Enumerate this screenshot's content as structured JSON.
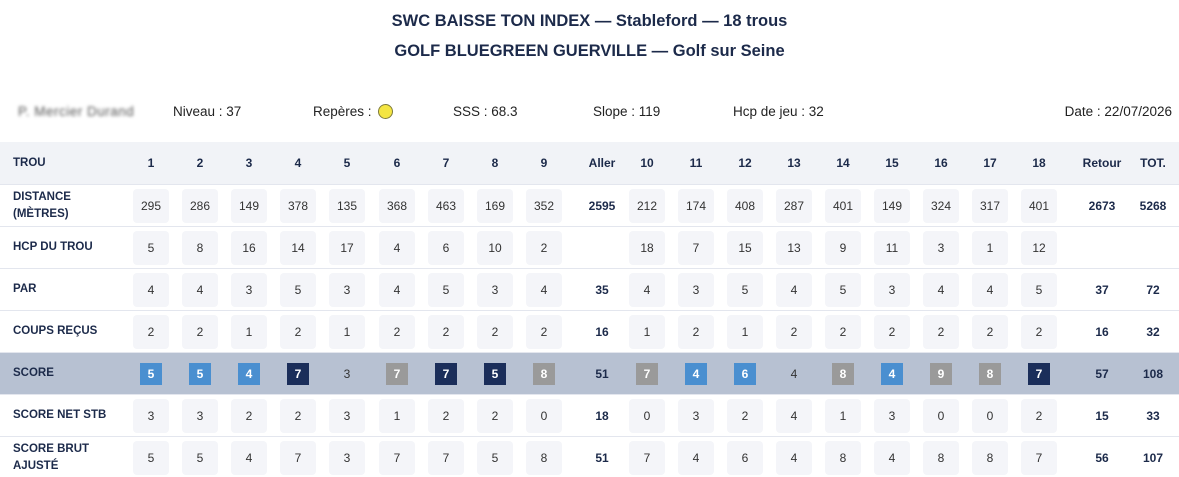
{
  "header": {
    "title_line1": "SWC BAISSE TON INDEX — Stableford — 18 trous",
    "title_line2": "GOLF BLUEGREEN GUERVILLE — Golf sur Seine"
  },
  "info": {
    "player_name": "P. Mercier Durand",
    "niveau": "Niveau : 37",
    "reperes_label": "Repères :",
    "tee_color": "#f4e542",
    "sss": "SSS : 68.3",
    "slope": "Slope : 119",
    "hcp": "Hcp de jeu : 32",
    "date": "Date : 22/07/2026"
  },
  "scorecard": {
    "header_label": "TROU",
    "columns": [
      "1",
      "2",
      "3",
      "4",
      "5",
      "6",
      "7",
      "8",
      "9",
      "Aller",
      "10",
      "11",
      "12",
      "13",
      "14",
      "15",
      "16",
      "17",
      "18",
      "Retour",
      "TOT."
    ],
    "rows": [
      {
        "label": "DISTANCE (MÈTRES)",
        "values": [
          "295",
          "286",
          "149",
          "378",
          "135",
          "368",
          "463",
          "169",
          "352",
          "2595",
          "212",
          "174",
          "408",
          "287",
          "401",
          "149",
          "324",
          "317",
          "401",
          "2673",
          "5268"
        ]
      },
      {
        "label": "HCP DU TROU",
        "values": [
          "5",
          "8",
          "16",
          "14",
          "17",
          "4",
          "6",
          "10",
          "2",
          "",
          "18",
          "7",
          "15",
          "13",
          "9",
          "11",
          "3",
          "1",
          "12",
          "",
          ""
        ]
      },
      {
        "label": "PAR",
        "values": [
          "4",
          "4",
          "3",
          "5",
          "3",
          "4",
          "5",
          "3",
          "4",
          "35",
          "4",
          "3",
          "5",
          "4",
          "5",
          "3",
          "4",
          "4",
          "5",
          "37",
          "72"
        ]
      },
      {
        "label": "COUPS REÇUS",
        "values": [
          "2",
          "2",
          "1",
          "2",
          "1",
          "2",
          "2",
          "2",
          "2",
          "16",
          "1",
          "2",
          "1",
          "2",
          "2",
          "2",
          "2",
          "2",
          "2",
          "16",
          "32"
        ]
      },
      {
        "label": "SCORE",
        "values": [
          "5",
          "5",
          "4",
          "7",
          "3",
          "7",
          "7",
          "5",
          "8",
          "51",
          "7",
          "4",
          "6",
          "4",
          "8",
          "4",
          "9",
          "8",
          "7",
          "57",
          "108"
        ]
      },
      {
        "label": "SCORE NET STB",
        "values": [
          "3",
          "3",
          "2",
          "2",
          "3",
          "1",
          "2",
          "2",
          "0",
          "18",
          "0",
          "3",
          "2",
          "4",
          "1",
          "3",
          "0",
          "0",
          "2",
          "15",
          "33"
        ]
      },
      {
        "label": "SCORE BRUT AJUSTÉ",
        "values": [
          "5",
          "5",
          "4",
          "7",
          "3",
          "7",
          "7",
          "5",
          "8",
          "51",
          "7",
          "4",
          "6",
          "4",
          "8",
          "4",
          "8",
          "8",
          "7",
          "56",
          "107"
        ]
      }
    ],
    "score_chip_colors": [
      "#4a8fd0",
      "#4a8fd0",
      "#4a8fd0",
      "#1b2e5a",
      "",
      "#9a9a9a",
      "#1b2e5a",
      "#1b2e5a",
      "#9a9a9a",
      "",
      "#9a9a9a",
      "#4a8fd0",
      "#4a8fd0",
      "",
      "#9a9a9a",
      "#4a8fd0",
      "#9a9a9a",
      "#9a9a9a",
      "#1b2e5a",
      "",
      ""
    ]
  }
}
